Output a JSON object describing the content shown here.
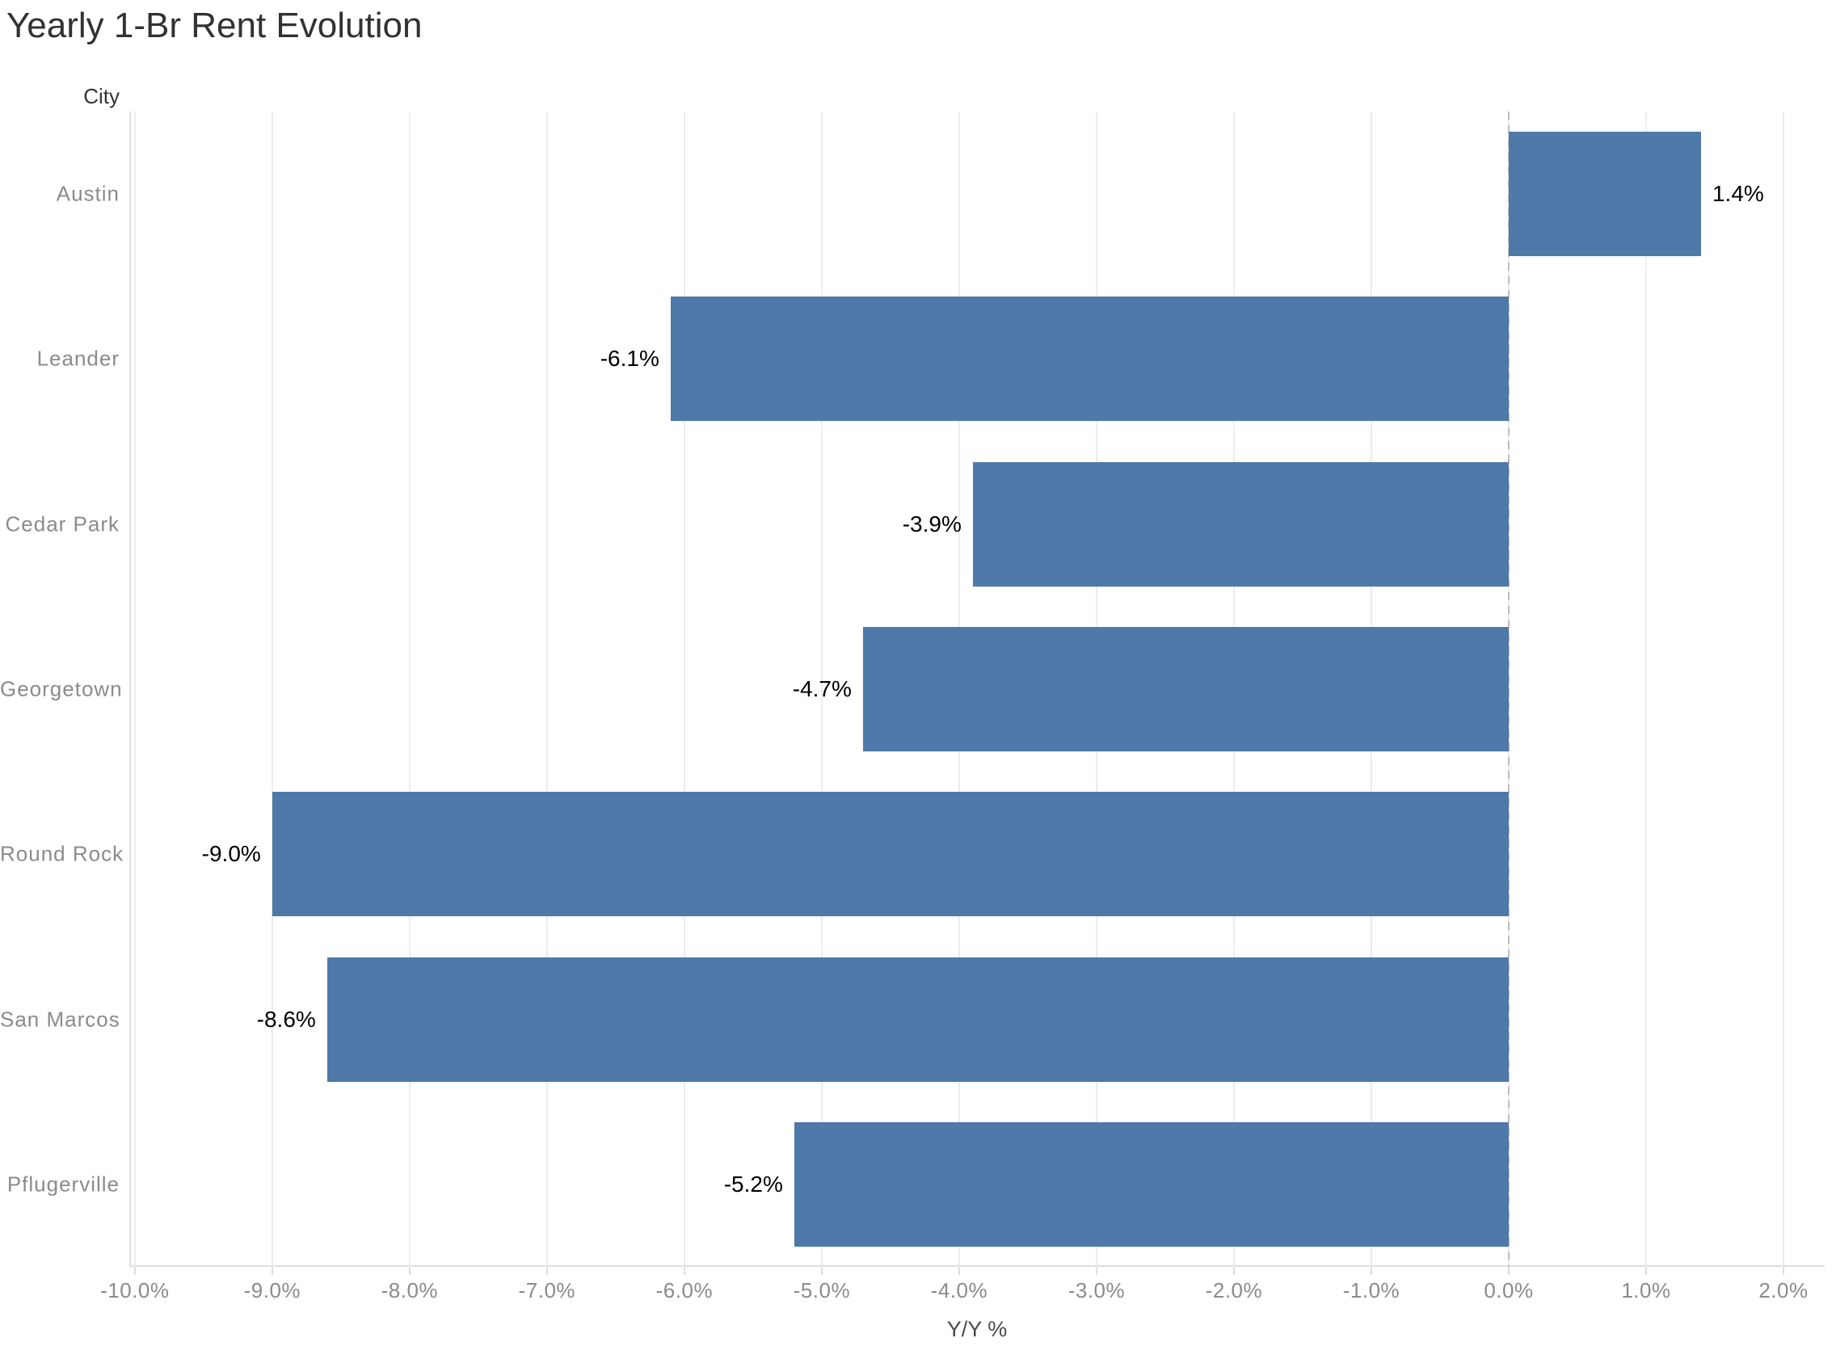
{
  "title": "Yearly 1-Br Rent Evolution",
  "chart_data": {
    "type": "bar",
    "orientation": "horizontal",
    "title": "Yearly 1-Br Rent Evolution",
    "xlabel": "Y/Y %",
    "ylabel": "City",
    "categories": [
      "Austin",
      "Leander",
      "Cedar Park",
      "Georgetown",
      "Round Rock",
      "San Marcos",
      "Pflugerville"
    ],
    "values": [
      1.4,
      -6.1,
      -3.9,
      -4.7,
      -9.0,
      -8.6,
      -5.2
    ],
    "value_labels": [
      "1.4%",
      "-6.1%",
      "-3.9%",
      "-4.7%",
      "-9.0%",
      "-8.6%",
      "-5.2%"
    ],
    "xlim": [
      -10.04,
      2.3
    ],
    "x_ticks": [
      -10,
      -9,
      -8,
      -7,
      -6,
      -5,
      -4,
      -3,
      -2,
      -1,
      0,
      1,
      2
    ],
    "x_tick_labels": [
      "-10.0%",
      "-9.0%",
      "-8.0%",
      "-7.0%",
      "-6.0%",
      "-5.0%",
      "-4.0%",
      "-3.0%",
      "-2.0%",
      "-1.0%",
      "0.0%",
      "1.0%",
      "2.0%"
    ],
    "grid": "vertical",
    "legend": "none",
    "zero_line": "dashed",
    "bar_color": "#4e79a8"
  },
  "colors": {
    "bar": "#4e79a8",
    "title_text": "#323232",
    "field_label_text": "#343434",
    "axis_text": "#8b8b8b",
    "value_label_text": "#000000",
    "axis_title_text": "#4b4b4b",
    "gridline": "#ececec",
    "axis_line": "#dedede",
    "zero_line": "#bdbdbd",
    "background": "#ffffff"
  }
}
